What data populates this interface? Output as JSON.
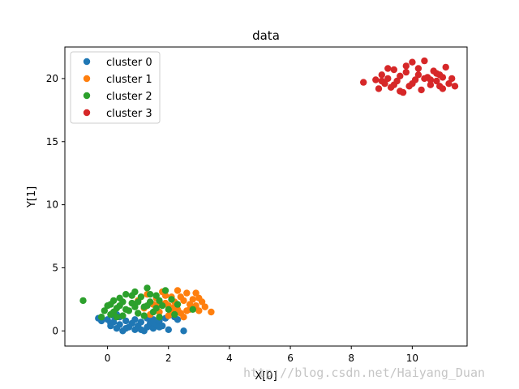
{
  "chart_data": {
    "type": "scatter",
    "title": "data",
    "xlabel": "X[0]",
    "ylabel": "Y[1]",
    "xlim": [
      -1.4,
      11.8
    ],
    "ylim": [
      -1.2,
      22.5
    ],
    "xticks": [
      0,
      2,
      4,
      6,
      8,
      10
    ],
    "yticks": [
      0,
      5,
      10,
      15,
      20
    ],
    "grid": false,
    "legend_position": "top-left",
    "series": [
      {
        "name": "cluster 0",
        "color": "#1f77b4",
        "points": [
          [
            -0.3,
            1.0
          ],
          [
            -0.2,
            0.8
          ],
          [
            0.0,
            0.9
          ],
          [
            0.1,
            0.4
          ],
          [
            0.2,
            0.7
          ],
          [
            0.3,
            0.2
          ],
          [
            0.4,
            0.5
          ],
          [
            0.5,
            0.0
          ],
          [
            0.6,
            0.8
          ],
          [
            0.7,
            0.3
          ],
          [
            0.8,
            0.6
          ],
          [
            0.9,
            0.1
          ],
          [
            1.0,
            0.4
          ],
          [
            1.1,
            0.7
          ],
          [
            1.2,
            0.0
          ],
          [
            1.3,
            0.3
          ],
          [
            1.4,
            0.6
          ],
          [
            1.5,
            0.2
          ],
          [
            1.6,
            0.5
          ],
          [
            1.7,
            0.8
          ],
          [
            1.8,
            0.4
          ],
          [
            1.9,
            1.0
          ],
          [
            2.0,
            0.1
          ],
          [
            2.2,
            1.1
          ],
          [
            2.3,
            0.9
          ],
          [
            2.5,
            0.0
          ],
          [
            0.2,
            1.2
          ],
          [
            0.4,
            1.1
          ],
          [
            0.6,
            0.2
          ],
          [
            0.9,
            0.9
          ],
          [
            1.1,
            0.1
          ],
          [
            1.3,
            1.0
          ],
          [
            1.5,
            0.9
          ],
          [
            1.7,
            0.3
          ],
          [
            0.1,
            0.6
          ],
          [
            0.3,
            1.3
          ]
        ]
      },
      {
        "name": "cluster 1",
        "color": "#ff7f0e",
        "points": [
          [
            1.0,
            2.4
          ],
          [
            1.2,
            1.8
          ],
          [
            1.3,
            2.9
          ],
          [
            1.5,
            2.1
          ],
          [
            1.6,
            2.6
          ],
          [
            1.7,
            1.5
          ],
          [
            1.8,
            3.1
          ],
          [
            1.9,
            2.2
          ],
          [
            2.0,
            1.2
          ],
          [
            2.1,
            2.7
          ],
          [
            2.2,
            1.9
          ],
          [
            2.3,
            3.2
          ],
          [
            2.4,
            1.4
          ],
          [
            2.5,
            2.4
          ],
          [
            2.6,
            3.0
          ],
          [
            2.7,
            1.7
          ],
          [
            2.8,
            2.5
          ],
          [
            2.9,
            2.0
          ],
          [
            3.0,
            1.6
          ],
          [
            3.1,
            2.3
          ],
          [
            3.2,
            1.9
          ],
          [
            3.4,
            1.5
          ],
          [
            2.2,
            2.3
          ],
          [
            2.5,
            1.1
          ],
          [
            1.9,
            2.8
          ],
          [
            2.7,
            2.1
          ],
          [
            2.9,
            3.0
          ],
          [
            2.1,
            1.5
          ],
          [
            1.4,
            1.3
          ],
          [
            2.6,
            1.6
          ],
          [
            2.0,
            2.0
          ],
          [
            2.4,
            2.7
          ],
          [
            1.7,
            2.3
          ],
          [
            3.0,
            2.6
          ],
          [
            2.3,
            1.7
          ],
          [
            1.6,
            1.9
          ]
        ]
      },
      {
        "name": "cluster 2",
        "color": "#2ca02c",
        "points": [
          [
            -0.8,
            2.4
          ],
          [
            -0.2,
            1.1
          ],
          [
            -0.1,
            1.6
          ],
          [
            0.0,
            2.0
          ],
          [
            0.1,
            1.3
          ],
          [
            0.2,
            2.4
          ],
          [
            0.3,
            1.8
          ],
          [
            0.4,
            2.6
          ],
          [
            0.5,
            1.2
          ],
          [
            0.6,
            2.9
          ],
          [
            0.7,
            1.6
          ],
          [
            0.8,
            2.2
          ],
          [
            0.9,
            3.1
          ],
          [
            1.0,
            1.4
          ],
          [
            1.1,
            2.7
          ],
          [
            1.2,
            1.9
          ],
          [
            1.3,
            3.4
          ],
          [
            1.4,
            2.3
          ],
          [
            1.5,
            1.5
          ],
          [
            1.6,
            2.8
          ],
          [
            1.7,
            1.1
          ],
          [
            1.8,
            2.0
          ],
          [
            1.9,
            3.2
          ],
          [
            2.0,
            1.7
          ],
          [
            2.1,
            2.5
          ],
          [
            2.2,
            1.3
          ],
          [
            2.3,
            2.1
          ],
          [
            2.8,
            1.7
          ],
          [
            0.2,
            1.5
          ],
          [
            0.4,
            2.0
          ],
          [
            0.6,
            1.7
          ],
          [
            0.8,
            2.8
          ],
          [
            1.0,
            2.3
          ],
          [
            1.2,
            1.2
          ],
          [
            1.4,
            2.9
          ],
          [
            1.6,
            1.8
          ],
          [
            0.1,
            2.1
          ],
          [
            0.5,
            2.3
          ],
          [
            0.9,
            1.9
          ],
          [
            1.3,
            2.0
          ],
          [
            1.7,
            2.4
          ],
          [
            0.3,
            1.1
          ]
        ]
      },
      {
        "name": "cluster 3",
        "color": "#d62728",
        "points": [
          [
            8.4,
            19.7
          ],
          [
            8.8,
            19.9
          ],
          [
            8.9,
            19.2
          ],
          [
            9.0,
            20.3
          ],
          [
            9.1,
            19.6
          ],
          [
            9.2,
            20.0
          ],
          [
            9.3,
            19.3
          ],
          [
            9.4,
            20.7
          ],
          [
            9.5,
            19.8
          ],
          [
            9.6,
            20.2
          ],
          [
            9.7,
            18.9
          ],
          [
            9.8,
            20.5
          ],
          [
            9.9,
            19.4
          ],
          [
            10.0,
            21.3
          ],
          [
            10.1,
            19.9
          ],
          [
            10.2,
            20.8
          ],
          [
            10.3,
            19.1
          ],
          [
            10.4,
            21.4
          ],
          [
            10.5,
            20.1
          ],
          [
            10.6,
            19.5
          ],
          [
            10.7,
            20.6
          ],
          [
            10.8,
            19.8
          ],
          [
            10.9,
            20.3
          ],
          [
            11.0,
            19.2
          ],
          [
            11.1,
            20.9
          ],
          [
            11.2,
            19.6
          ],
          [
            11.3,
            20.0
          ],
          [
            11.4,
            19.4
          ],
          [
            9.2,
            20.8
          ],
          [
            9.6,
            19.0
          ],
          [
            10.0,
            19.6
          ],
          [
            10.4,
            20.0
          ],
          [
            10.8,
            20.4
          ],
          [
            9.4,
            19.5
          ],
          [
            10.2,
            20.3
          ],
          [
            10.6,
            19.9
          ],
          [
            9.8,
            21.0
          ],
          [
            11.0,
            20.1
          ],
          [
            9.0,
            19.8
          ],
          [
            10.9,
            19.4
          ]
        ]
      }
    ]
  },
  "watermark": "http://blog.csdn.net/Haiyang_Duan"
}
